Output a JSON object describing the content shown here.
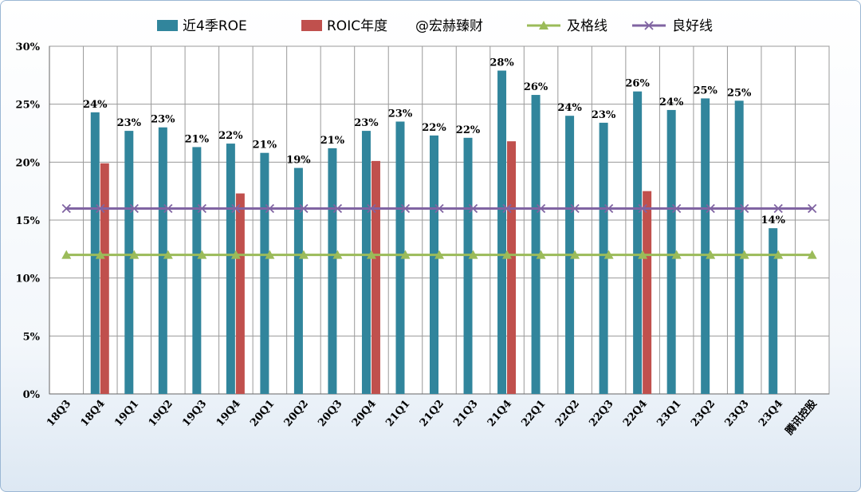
{
  "chart_data": {
    "type": "bar",
    "categories": [
      "18Q3",
      "18Q4",
      "19Q1",
      "19Q2",
      "19Q3",
      "19Q4",
      "20Q1",
      "20Q2",
      "20Q3",
      "20Q4",
      "21Q1",
      "21Q2",
      "21Q3",
      "21Q4",
      "22Q1",
      "22Q2",
      "22Q3",
      "22Q4",
      "23Q1",
      "23Q2",
      "23Q3",
      "23Q4",
      "腾讯控股"
    ],
    "series": [
      {
        "name": "近4季ROE",
        "kind": "bar",
        "color": "#31859c",
        "values": [
          null,
          24.3,
          22.7,
          23.0,
          21.3,
          21.6,
          20.8,
          19.5,
          21.2,
          22.7,
          23.5,
          22.3,
          22.1,
          27.9,
          25.8,
          24.0,
          23.4,
          26.1,
          24.5,
          25.5,
          25.3,
          14.3,
          null
        ],
        "labels": [
          "",
          "24%",
          "23%",
          "23%",
          "21%",
          "22%",
          "21%",
          "19%",
          "21%",
          "23%",
          "23%",
          "22%",
          "22%",
          "28%",
          "26%",
          "24%",
          "23%",
          "26%",
          "24%",
          "25%",
          "25%",
          "14%",
          ""
        ]
      },
      {
        "name": "ROIC年度",
        "kind": "bar",
        "color": "#c0504d",
        "values": [
          null,
          19.9,
          null,
          null,
          null,
          17.3,
          null,
          null,
          null,
          20.1,
          null,
          null,
          null,
          21.8,
          null,
          null,
          null,
          17.5,
          null,
          null,
          null,
          null,
          null
        ]
      },
      {
        "name": "及格线",
        "kind": "line",
        "marker": "triangle",
        "color": "#9bbb59",
        "values": [
          12,
          12,
          12,
          12,
          12,
          12,
          12,
          12,
          12,
          12,
          12,
          12,
          12,
          12,
          12,
          12,
          12,
          12,
          12,
          12,
          12,
          12,
          12
        ]
      },
      {
        "name": "良好线",
        "kind": "line",
        "marker": "x",
        "color": "#8064a2",
        "values": [
          16,
          16,
          16,
          16,
          16,
          16,
          16,
          16,
          16,
          16,
          16,
          16,
          16,
          16,
          16,
          16,
          16,
          16,
          16,
          16,
          16,
          16,
          16
        ]
      }
    ],
    "legend_extra": "@宏赫臻财",
    "ylim": [
      0,
      30
    ],
    "yticks": [
      0,
      5,
      10,
      15,
      20,
      25,
      30
    ],
    "ytick_labels": [
      "0%",
      "5%",
      "10%",
      "15%",
      "20%",
      "25%",
      "30%"
    ],
    "grid": true,
    "legend_position": "top"
  }
}
